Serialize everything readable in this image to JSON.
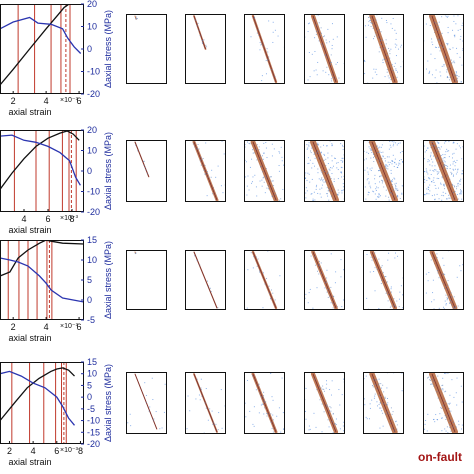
{
  "figure": {
    "ylabel": "Δaxial stress (MPa)",
    "xlabel": "axial strain",
    "exponent": "×10⁻³",
    "corner_label": "on-fault"
  },
  "colors": {
    "curve": "#111111",
    "delta": "#2b35b0",
    "markers": "#c0392b",
    "fault": "#b5653a",
    "events": "#2f73d9",
    "axis_right": "#1f2d9e"
  },
  "chart_data": [
    {
      "type": "line",
      "xlabel": "axial strain",
      "ylabel": "Δaxial stress (MPa)",
      "xlim": [
        1.2,
        6.3
      ],
      "ylim": [
        -20,
        20
      ],
      "xticks": [
        2,
        4,
        6
      ],
      "yticks": [
        -20,
        -10,
        0,
        10,
        20
      ],
      "series": [
        {
          "values": [
            [
              1.2,
              -16
            ],
            [
              2.0,
              -9
            ],
            [
              3.0,
              0
            ],
            [
              4.0,
              9
            ],
            [
              4.7,
              15
            ],
            [
              5.1,
              18.5
            ],
            [
              5.4,
              20
            ],
            [
              5.8,
              21
            ]
          ]
        },
        {
          "values": [
            [
              1.2,
              9
            ],
            [
              2.0,
              12
            ],
            [
              3.0,
              14
            ],
            [
              3.5,
              11.5
            ],
            [
              4.3,
              11
            ],
            [
              5.0,
              9
            ],
            [
              5.3,
              5
            ],
            [
              5.7,
              1
            ],
            [
              6.1,
              -2
            ]
          ]
        }
      ],
      "markers": [
        2.3,
        3.3,
        4.3,
        4.9,
        5.45
      ],
      "dashed_marker": 5.2,
      "fault_stage": [
        0.05,
        0.5,
        1,
        1,
        1,
        1
      ],
      "events": [
        0,
        0,
        0.05,
        0.15,
        0.25,
        0.3
      ],
      "band": [
        0.01,
        0.03,
        0.04,
        0.07,
        0.09,
        0.1
      ]
    },
    {
      "type": "line",
      "xlabel": "axial strain",
      "ylabel": "Δaxial stress (MPa)",
      "xlim": [
        2,
        9
      ],
      "ylim": [
        -20,
        20
      ],
      "xticks": [
        4,
        6,
        8
      ],
      "yticks": [
        -20,
        -10,
        0,
        10,
        20
      ],
      "series": [
        {
          "values": [
            [
              2,
              -9
            ],
            [
              3,
              -1
            ],
            [
              4,
              6
            ],
            [
              5,
              12
            ],
            [
              6,
              16
            ],
            [
              7,
              18.5
            ],
            [
              7.6,
              19.5
            ],
            [
              8.1,
              18
            ],
            [
              8.6,
              15
            ]
          ]
        },
        {
          "values": [
            [
              2,
              17
            ],
            [
              3,
              17.5
            ],
            [
              4,
              15
            ],
            [
              5,
              14
            ],
            [
              6,
              12
            ],
            [
              7,
              9
            ],
            [
              7.8,
              5
            ],
            [
              8.3,
              -3
            ],
            [
              8.7,
              -7
            ]
          ]
        }
      ],
      "markers": [
        3.2,
        5.0,
        6.1,
        7.2,
        7.75,
        8.35
      ],
      "dashed_marker": 7.95,
      "fault_stage": [
        0.6,
        1,
        1,
        1,
        1,
        1
      ],
      "events": [
        0,
        0.05,
        0.2,
        0.5,
        0.6,
        0.75
      ],
      "band": [
        0.02,
        0.05,
        0.08,
        0.1,
        0.1,
        0.1
      ]
    },
    {
      "type": "line",
      "xlabel": "axial strain",
      "ylabel": "Δaxial stress (MPa)",
      "xlim": [
        1.2,
        6.3
      ],
      "ylim": [
        -5,
        15
      ],
      "xticks": [
        2,
        4,
        6
      ],
      "yticks": [
        -5,
        0,
        5,
        10,
        15
      ],
      "series": [
        {
          "values": [
            [
              1.2,
              6
            ],
            [
              1.8,
              7
            ],
            [
              2.3,
              10.5
            ],
            [
              2.9,
              12.5
            ],
            [
              3.6,
              14.2
            ],
            [
              4.0,
              15
            ],
            [
              4.3,
              14.7
            ],
            [
              5.0,
              14.2
            ],
            [
              6.3,
              14
            ]
          ]
        },
        {
          "values": [
            [
              1.2,
              10.5
            ],
            [
              1.8,
              10
            ],
            [
              2.3,
              9.5
            ],
            [
              2.9,
              8.5
            ],
            [
              3.6,
              6
            ],
            [
              4.0,
              4.2
            ],
            [
              4.3,
              2.5
            ],
            [
              5.0,
              0.5
            ],
            [
              6.3,
              -0.5
            ]
          ]
        }
      ],
      "markers": [
        1.7,
        2.35,
        2.9,
        3.45,
        4.05,
        4.35
      ],
      "dashed_marker": 4.2,
      "fault_stage": [
        0.02,
        1,
        1,
        1,
        1,
        1
      ],
      "events": [
        0,
        0,
        0.03,
        0.07,
        0.1,
        0.12
      ],
      "band": [
        0.005,
        0.02,
        0.04,
        0.06,
        0.07,
        0.08
      ]
    },
    {
      "type": "line",
      "xlabel": "axial strain",
      "ylabel": "Δaxial stress (MPa)",
      "xlim": [
        1.2,
        8.3
      ],
      "ylim": [
        -20,
        15
      ],
      "xticks": [
        2,
        4,
        6,
        8
      ],
      "yticks": [
        -20,
        -15,
        -10,
        -5,
        0,
        5,
        10,
        15
      ],
      "series": [
        {
          "values": [
            [
              1.2,
              -10
            ],
            [
              2.5,
              -2
            ],
            [
              3.5,
              4
            ],
            [
              4.5,
              8
            ],
            [
              5.5,
              11
            ],
            [
              6.0,
              12
            ],
            [
              6.5,
              12.5
            ],
            [
              7.0,
              11.5
            ],
            [
              7.5,
              9
            ]
          ]
        },
        {
          "values": [
            [
              1.2,
              10
            ],
            [
              2.0,
              11
            ],
            [
              3.0,
              9
            ],
            [
              4.0,
              6
            ],
            [
              5.0,
              4
            ],
            [
              6.0,
              0
            ],
            [
              6.5,
              -4
            ],
            [
              7.0,
              -9
            ],
            [
              7.5,
              -12
            ]
          ]
        }
      ],
      "markers": [
        2.2,
        3.7,
        4.9,
        5.9,
        6.4,
        6.8
      ],
      "dashed_marker": 6.6,
      "fault_stage": [
        0.95,
        1,
        1,
        1,
        1,
        1
      ],
      "events": [
        0.05,
        0.06,
        0.1,
        0.12,
        0.15,
        0.18
      ],
      "band": [
        0.01,
        0.03,
        0.05,
        0.07,
        0.09,
        0.1
      ]
    }
  ]
}
